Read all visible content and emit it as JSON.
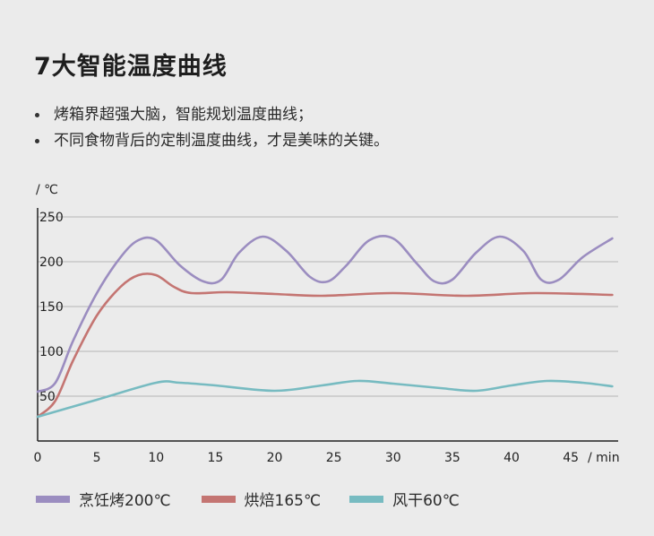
{
  "header": {
    "title": "7大智能温度曲线",
    "bullets": [
      "烤箱界超强大脑，智能规划温度曲线；",
      "不同食物背后的定制温度曲线，才是美味的关键。"
    ]
  },
  "chart_data": {
    "type": "line",
    "ylabel": "/ ℃",
    "xlabel": "/ min",
    "xlim": [
      0,
      49
    ],
    "ylim": [
      0,
      250
    ],
    "xticks": [
      0,
      5,
      10,
      15,
      20,
      25,
      30,
      35,
      40,
      45
    ],
    "yticks": [
      50,
      100,
      150,
      200,
      250
    ],
    "grid": true,
    "legend_position": "bottom",
    "series": [
      {
        "name": "烹饪烤200℃",
        "color": "#9b8dc0",
        "x": [
          0,
          1.5,
          3,
          5,
          7,
          8.5,
          10,
          12,
          14,
          15.5,
          17,
          19,
          21,
          23,
          24.5,
          26,
          28,
          30,
          32,
          33.5,
          35,
          37,
          39,
          41,
          42.5,
          44,
          46,
          48.5
        ],
        "y": [
          55,
          65,
          112,
          165,
          205,
          224,
          224,
          196,
          178,
          180,
          210,
          228,
          212,
          183,
          178,
          195,
          224,
          226,
          198,
          178,
          180,
          210,
          228,
          212,
          180,
          180,
          205,
          226
        ]
      },
      {
        "name": "烘焙165℃",
        "color": "#c47572",
        "x": [
          0,
          1.5,
          3,
          5,
          7,
          8.5,
          10,
          11.5,
          13,
          16,
          20,
          24,
          30,
          36,
          42,
          48.5
        ],
        "y": [
          27,
          45,
          90,
          140,
          172,
          185,
          185,
          172,
          165,
          166,
          164,
          162,
          165,
          162,
          165,
          163
        ]
      },
      {
        "name": "风干60℃",
        "color": "#77bbc1",
        "x": [
          0,
          5,
          10,
          12,
          15,
          20,
          24,
          27,
          30,
          34,
          37,
          40,
          43,
          46,
          48.5
        ],
        "y": [
          27,
          46,
          65,
          65,
          62,
          56,
          62,
          67,
          64,
          59,
          56,
          62,
          67,
          65,
          61
        ]
      }
    ]
  },
  "colors": {
    "background": "#ebebeb",
    "grid": "#b5b5b5",
    "axis": "#222222"
  }
}
